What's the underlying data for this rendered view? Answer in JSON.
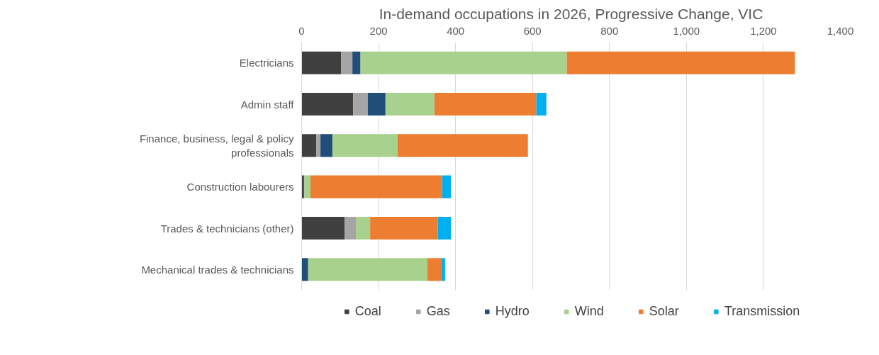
{
  "chart_data": {
    "type": "bar",
    "title": "In-demand occupations in 2026, Progressive Change, VIC",
    "orientation": "horizontal",
    "stacked": true,
    "categories": [
      "Electricians",
      "Admin staff",
      "Finance, business, legal & policy\nprofessionals",
      "Construction labourers",
      "Trades & technicians (other)",
      "Mechanical trades & technicians"
    ],
    "series": [
      {
        "name": "Coal",
        "color": "#404040",
        "values": [
          103,
          134,
          38,
          5,
          112,
          0
        ]
      },
      {
        "name": "Gas",
        "color": "#a5a5a5",
        "values": [
          29,
          38,
          11,
          null,
          29,
          0
        ]
      },
      {
        "name": "Hydro",
        "color": "#1f4e79",
        "values": [
          21,
          46,
          31,
          2,
          0,
          17
        ]
      },
      {
        "name": "Wind",
        "color": "#a9d18e",
        "values": [
          536,
          127,
          169,
          16,
          37,
          310
        ]
      },
      {
        "name": "Solar",
        "color": "#ed7d31",
        "values": [
          593,
          265,
          339,
          342,
          176,
          37
        ]
      },
      {
        "name": "Transmission",
        "color": "#00b0f0",
        "values": [
          0,
          26,
          0,
          23,
          34,
          9
        ]
      }
    ],
    "xlim": [
      0,
      1400
    ],
    "xticks": [
      0,
      200,
      400,
      600,
      800,
      {
        "value": 1000,
        "label": "1,000"
      },
      {
        "value": 1200,
        "label": "1,200"
      },
      {
        "value": 1400,
        "label": "1,400"
      }
    ],
    "grid": "x",
    "legend": "bottom"
  }
}
